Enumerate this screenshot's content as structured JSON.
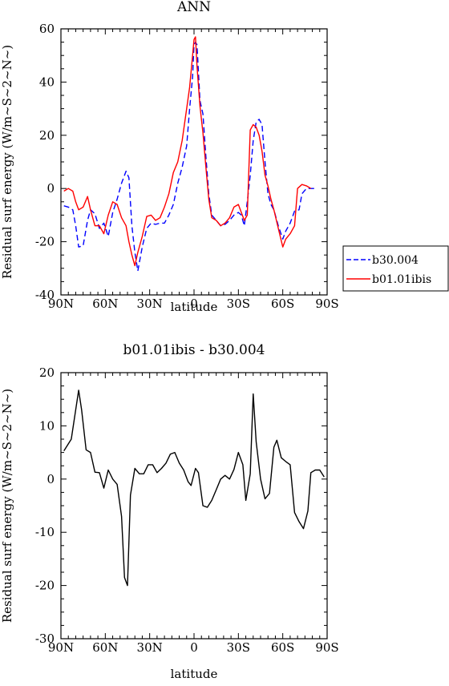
{
  "chart_data": [
    {
      "type": "line",
      "title": "ANN",
      "xlabel": "latitude",
      "ylabel": "Residual surf energy (W/m~S~2~N~)",
      "x_tick_labels": [
        "90N",
        "60N",
        "30N",
        "0",
        "30S",
        "60S",
        "90S"
      ],
      "x_ticks": [
        90,
        60,
        30,
        0,
        -30,
        -60,
        -90
      ],
      "xlim": [
        90,
        -90
      ],
      "ylim": [
        -40,
        60
      ],
      "y_ticks": [
        -40,
        -20,
        0,
        20,
        40,
        60
      ],
      "grid": false,
      "legend_position": "right-outside",
      "series": [
        {
          "name": "b30.004",
          "color": "#0000ff",
          "dash": true,
          "points": [
            [
              88,
              -6.5
            ],
            [
              85,
              -7
            ],
            [
              82,
              -8
            ],
            [
              80,
              -14
            ],
            [
              78,
              -22
            ],
            [
              75,
              -21.5
            ],
            [
              72,
              -12
            ],
            [
              70,
              -8
            ],
            [
              67,
              -9.5
            ],
            [
              64,
              -15
            ],
            [
              61,
              -13
            ],
            [
              58,
              -18
            ],
            [
              55,
              -9
            ],
            [
              52,
              -4
            ],
            [
              49,
              2
            ],
            [
              46,
              6.5
            ],
            [
              44,
              4
            ],
            [
              42,
              -14
            ],
            [
              40,
              -24
            ],
            [
              38,
              -31
            ],
            [
              35,
              -22
            ],
            [
              32,
              -15
            ],
            [
              29,
              -13
            ],
            [
              26,
              -13.5
            ],
            [
              23,
              -13
            ],
            [
              20,
              -13
            ],
            [
              17,
              -10
            ],
            [
              14,
              -6
            ],
            [
              11,
              2
            ],
            [
              8,
              8
            ],
            [
              5,
              16
            ],
            [
              3,
              30
            ],
            [
              1,
              42
            ],
            [
              0,
              54
            ],
            [
              -1,
              55
            ],
            [
              -2,
              54
            ],
            [
              -4,
              33
            ],
            [
              -6,
              28
            ],
            [
              -8,
              12
            ],
            [
              -10,
              -2
            ],
            [
              -12,
              -10
            ],
            [
              -15,
              -12
            ],
            [
              -18,
              -14
            ],
            [
              -21,
              -13.5
            ],
            [
              -24,
              -12
            ],
            [
              -27,
              -10
            ],
            [
              -30,
              -9
            ],
            [
              -32,
              -10
            ],
            [
              -34,
              -14
            ],
            [
              -36,
              -5
            ],
            [
              -38,
              5
            ],
            [
              -40,
              18
            ],
            [
              -42,
              25
            ],
            [
              -44,
              26
            ],
            [
              -46,
              24
            ],
            [
              -48,
              10
            ],
            [
              -50,
              -2
            ],
            [
              -52,
              -6
            ],
            [
              -54,
              -8
            ],
            [
              -57,
              -14
            ],
            [
              -60,
              -19
            ],
            [
              -62,
              -16
            ],
            [
              -65,
              -13
            ],
            [
              -68,
              -8.5
            ],
            [
              -71,
              -8
            ],
            [
              -73,
              -2
            ],
            [
              -76,
              0
            ],
            [
              -79,
              0
            ],
            [
              -82,
              0
            ]
          ]
        },
        {
          "name": "b01.01ibis",
          "color": "#ff0000",
          "dash": false,
          "points": [
            [
              88,
              -1
            ],
            [
              85,
              0
            ],
            [
              82,
              -1
            ],
            [
              80,
              -5
            ],
            [
              78,
              -8
            ],
            [
              75,
              -7
            ],
            [
              72,
              -3
            ],
            [
              70,
              -8
            ],
            [
              67,
              -14
            ],
            [
              64,
              -14
            ],
            [
              61,
              -17
            ],
            [
              58,
              -10
            ],
            [
              55,
              -5
            ],
            [
              52,
              -6
            ],
            [
              49,
              -11
            ],
            [
              46,
              -14
            ],
            [
              44,
              -20
            ],
            [
              42,
              -25
            ],
            [
              40,
              -29
            ],
            [
              38,
              -24
            ],
            [
              35,
              -18
            ],
            [
              32,
              -10.5
            ],
            [
              29,
              -10
            ],
            [
              26,
              -12
            ],
            [
              23,
              -11
            ],
            [
              20,
              -7
            ],
            [
              17,
              -2
            ],
            [
              14,
              6
            ],
            [
              11,
              10
            ],
            [
              8,
              18
            ],
            [
              5,
              30
            ],
            [
              3,
              38
            ],
            [
              1,
              50
            ],
            [
              0,
              56
            ],
            [
              -1,
              57
            ],
            [
              -2,
              46
            ],
            [
              -4,
              31
            ],
            [
              -6,
              21
            ],
            [
              -8,
              8
            ],
            [
              -10,
              -4
            ],
            [
              -12,
              -11
            ],
            [
              -15,
              -12
            ],
            [
              -18,
              -14
            ],
            [
              -21,
              -13
            ],
            [
              -24,
              -11
            ],
            [
              -27,
              -7
            ],
            [
              -30,
              -6
            ],
            [
              -32,
              -9
            ],
            [
              -34,
              -12
            ],
            [
              -36,
              -10
            ],
            [
              -38,
              22
            ],
            [
              -40,
              24
            ],
            [
              -42,
              23
            ],
            [
              -44,
              20
            ],
            [
              -46,
              14
            ],
            [
              -48,
              5
            ],
            [
              -50,
              1
            ],
            [
              -52,
              -4
            ],
            [
              -54,
              -8
            ],
            [
              -57,
              -15
            ],
            [
              -60,
              -22
            ],
            [
              -62,
              -19
            ],
            [
              -65,
              -17
            ],
            [
              -68,
              -14
            ],
            [
              -70,
              0
            ],
            [
              -73,
              1.5
            ],
            [
              -76,
              1
            ],
            [
              -79,
              0
            ]
          ]
        }
      ]
    },
    {
      "type": "line",
      "title": "b01.01ibis - b30.004",
      "xlabel": "latitude",
      "ylabel": "Residual surf energy (W/m~S~2~N~)",
      "x_tick_labels": [
        "90N",
        "60N",
        "30N",
        "0",
        "30S",
        "60S",
        "90S"
      ],
      "x_ticks": [
        90,
        60,
        30,
        0,
        -30,
        -60,
        -90
      ],
      "xlim": [
        90,
        -90
      ],
      "ylim": [
        -30,
        20
      ],
      "y_ticks": [
        -30,
        -20,
        -10,
        0,
        10,
        20
      ],
      "grid": false,
      "series": [
        {
          "color": "#000000",
          "dash": false,
          "points": [
            [
              88,
              5.3
            ],
            [
              83,
              7.5
            ],
            [
              80,
              13
            ],
            [
              78,
              16.7
            ],
            [
              76,
              13
            ],
            [
              73,
              5.5
            ],
            [
              70,
              5
            ],
            [
              67,
              1.3
            ],
            [
              64,
              1.2
            ],
            [
              61,
              -1.7
            ],
            [
              58,
              1.7
            ],
            [
              55,
              0
            ],
            [
              52,
              -1
            ],
            [
              49,
              -7
            ],
            [
              47,
              -18.5
            ],
            [
              45,
              -20
            ],
            [
              43,
              -3
            ],
            [
              40,
              2
            ],
            [
              37,
              1
            ],
            [
              34,
              1
            ],
            [
              31,
              2.7
            ],
            [
              28,
              2.7
            ],
            [
              25,
              1.2
            ],
            [
              22,
              2
            ],
            [
              19,
              3
            ],
            [
              16,
              4.7
            ],
            [
              13,
              5
            ],
            [
              10,
              3
            ],
            [
              7,
              1.7
            ],
            [
              4,
              -0.5
            ],
            [
              2,
              -1.2
            ],
            [
              -1,
              2
            ],
            [
              -3,
              1.2
            ],
            [
              -6,
              -5
            ],
            [
              -9,
              -5.3
            ],
            [
              -12,
              -4
            ],
            [
              -15,
              -2
            ],
            [
              -18,
              0
            ],
            [
              -21,
              0.7
            ],
            [
              -24,
              0
            ],
            [
              -27,
              1.8
            ],
            [
              -30,
              5
            ],
            [
              -33,
              2.7
            ],
            [
              -35,
              -4
            ],
            [
              -38,
              1
            ],
            [
              -40,
              16
            ],
            [
              -42,
              7
            ],
            [
              -45,
              0
            ],
            [
              -48,
              -3.7
            ],
            [
              -51,
              -2.7
            ],
            [
              -54,
              6
            ],
            [
              -56,
              7.3
            ],
            [
              -59,
              4
            ],
            [
              -62,
              3.3
            ],
            [
              -65,
              2.7
            ],
            [
              -68,
              -6.3
            ],
            [
              -71,
              -8
            ],
            [
              -74,
              -9.3
            ],
            [
              -77,
              -6
            ],
            [
              -79,
              1.2
            ],
            [
              -82,
              1.7
            ],
            [
              -85,
              1.7
            ],
            [
              -88,
              0.4
            ]
          ]
        }
      ]
    }
  ]
}
